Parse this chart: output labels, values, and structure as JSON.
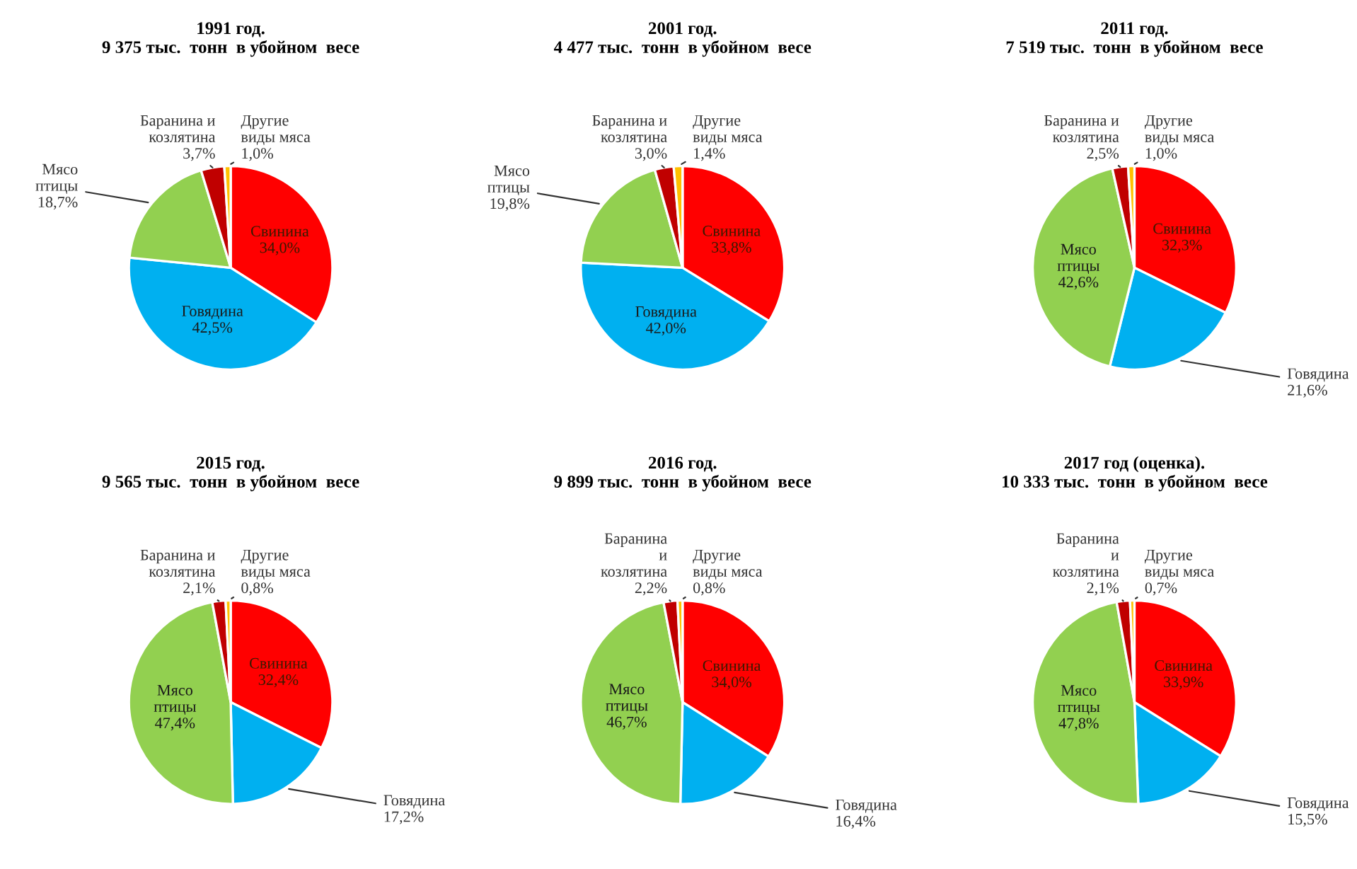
{
  "chart_data": [
    {
      "type": "pie",
      "title": "1991 год.\n9 375 тыс.  тонн  в убойном  весе",
      "categories": [
        "Свинина",
        "Говядина",
        "Мясо\nптицы",
        "Баранина и\nкозлятина",
        "Другие\nвиды мяса"
      ],
      "values": [
        34.0,
        42.5,
        18.7,
        3.7,
        1.0
      ],
      "value_labels": [
        "34,0%",
        "42,5%",
        "18,7%",
        "3,7%",
        "1,0%"
      ],
      "colors": [
        "#ff0000",
        "#00b0f0",
        "#92d050",
        "#c00000",
        "#ffc000"
      ]
    },
    {
      "type": "pie",
      "title": "2001 год.\n4 477 тыс.  тонн  в убойном  весе",
      "categories": [
        "Свинина",
        "Говядина",
        "Мясо\nптицы",
        "Баранина и\nкозлятина",
        "Другие\nвиды мяса"
      ],
      "values": [
        33.8,
        42.0,
        19.8,
        3.0,
        1.4
      ],
      "value_labels": [
        "33,8%",
        "42,0%",
        "19,8%",
        "3,0%",
        "1,4%"
      ],
      "colors": [
        "#ff0000",
        "#00b0f0",
        "#92d050",
        "#c00000",
        "#ffc000"
      ]
    },
    {
      "type": "pie",
      "title": "2011 год.\n7 519 тыс.  тонн  в убойном  весе",
      "categories": [
        "Свинина",
        "Говядина",
        "Мясо\nптицы",
        "Баранина и\nкозлятина",
        "Другие\nвиды мяса"
      ],
      "values": [
        32.3,
        21.6,
        42.6,
        2.5,
        1.0
      ],
      "value_labels": [
        "32,3%",
        "21,6%",
        "42,6%",
        "2,5%",
        "1,0%"
      ],
      "colors": [
        "#ff0000",
        "#00b0f0",
        "#92d050",
        "#c00000",
        "#ffc000"
      ]
    },
    {
      "type": "pie",
      "title": "2015 год.\n9 565 тыс.  тонн  в убойном  весе",
      "categories": [
        "Свинина",
        "Говядина",
        "Мясо\nптицы",
        "Баранина и\nкозлятина",
        "Другие\nвиды мяса"
      ],
      "values": [
        32.4,
        17.2,
        47.4,
        2.1,
        0.8
      ],
      "value_labels": [
        "32,4%",
        "17,2%",
        "47,4%",
        "2,1%",
        "0,8%"
      ],
      "colors": [
        "#ff0000",
        "#00b0f0",
        "#92d050",
        "#c00000",
        "#ffc000"
      ]
    },
    {
      "type": "pie",
      "title": "2016 год.\n9 899 тыс.  тонн  в убойном  весе",
      "categories": [
        "Свинина",
        "Говядина",
        "Мясо\nптицы",
        "Баранина\nи\nкозлятина",
        "Другие\nвиды мяса"
      ],
      "values": [
        34.0,
        16.4,
        46.7,
        2.2,
        0.8
      ],
      "value_labels": [
        "34,0%",
        "16,4%",
        "46,7%",
        "2,2%",
        "0,8%"
      ],
      "colors": [
        "#ff0000",
        "#00b0f0",
        "#92d050",
        "#c00000",
        "#ffc000"
      ]
    },
    {
      "type": "pie",
      "title": "2017 год (оценка).\n10 333 тыс.  тонн  в убойном  весе",
      "categories": [
        "Свинина",
        "Говядина",
        "Мясо\nптицы",
        "Баранина\nи\nкозлятина",
        "Другие\nвиды мяса"
      ],
      "values": [
        33.9,
        15.5,
        47.8,
        2.1,
        0.7
      ],
      "value_labels": [
        "33,9%",
        "15,5%",
        "47,8%",
        "2,1%",
        "0,7%"
      ],
      "colors": [
        "#ff0000",
        "#00b0f0",
        "#92d050",
        "#c00000",
        "#ffc000"
      ]
    }
  ]
}
